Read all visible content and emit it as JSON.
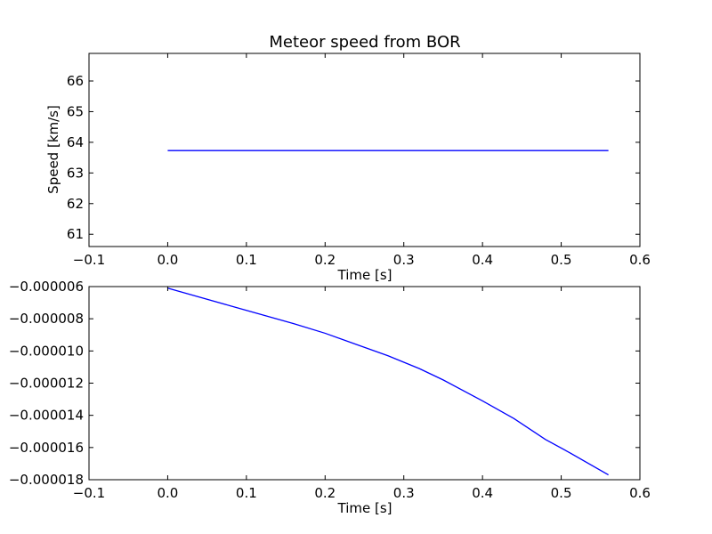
{
  "chart_data": [
    {
      "type": "line",
      "title": "Meteor speed from  BOR",
      "xlabel": "Time [s]",
      "ylabel": "Speed [km/s]",
      "xlim": [
        -0.1,
        0.6
      ],
      "ylim": [
        60.6,
        66.9
      ],
      "xticks": [
        -0.1,
        0.0,
        0.1,
        0.2,
        0.3,
        0.4,
        0.5,
        0.6
      ],
      "xtick_labels": [
        "−0.1",
        "0.0",
        "0.1",
        "0.2",
        "0.3",
        "0.4",
        "0.5",
        "0.6"
      ],
      "yticks": [
        61,
        62,
        63,
        64,
        65,
        66
      ],
      "ytick_labels": [
        "61",
        "62",
        "63",
        "64",
        "65",
        "66"
      ],
      "grid": false,
      "series": [
        {
          "color": "#0000ff",
          "x": [
            0.0,
            0.56
          ],
          "y": [
            63.73,
            63.73
          ]
        }
      ]
    },
    {
      "type": "line",
      "title": "",
      "xlabel": "Time [s]",
      "ylabel": "",
      "xlim": [
        -0.1,
        0.6
      ],
      "ylim": [
        -1.8e-05,
        -6e-06
      ],
      "xticks": [
        -0.1,
        0.0,
        0.1,
        0.2,
        0.3,
        0.4,
        0.5,
        0.6
      ],
      "xtick_labels": [
        "−0.1",
        "0.0",
        "0.1",
        "0.2",
        "0.3",
        "0.4",
        "0.5",
        "0.6"
      ],
      "yticks": [
        -6e-06,
        -8e-06,
        -1e-05,
        -1.2e-05,
        -1.4e-05,
        -1.6e-05,
        -1.8e-05
      ],
      "ytick_labels": [
        "−0.000006",
        "−0.000008",
        "−0.000010",
        "−0.000012",
        "−0.000014",
        "−0.000016",
        "−0.000018"
      ],
      "grid": false,
      "series": [
        {
          "color": "#0000ff",
          "x": [
            0.0,
            0.08,
            0.16,
            0.2,
            0.24,
            0.28,
            0.32,
            0.35,
            0.4,
            0.44,
            0.48,
            0.51,
            0.56
          ],
          "y": [
            -6.1e-06,
            -7.2e-06,
            -8.3e-06,
            -8.9e-06,
            -9.6e-06,
            -1.03e-05,
            -1.11e-05,
            -1.18e-05,
            -1.31e-05,
            -1.42e-05,
            -1.55e-05,
            -1.63e-05,
            -1.77e-05
          ]
        }
      ]
    }
  ]
}
